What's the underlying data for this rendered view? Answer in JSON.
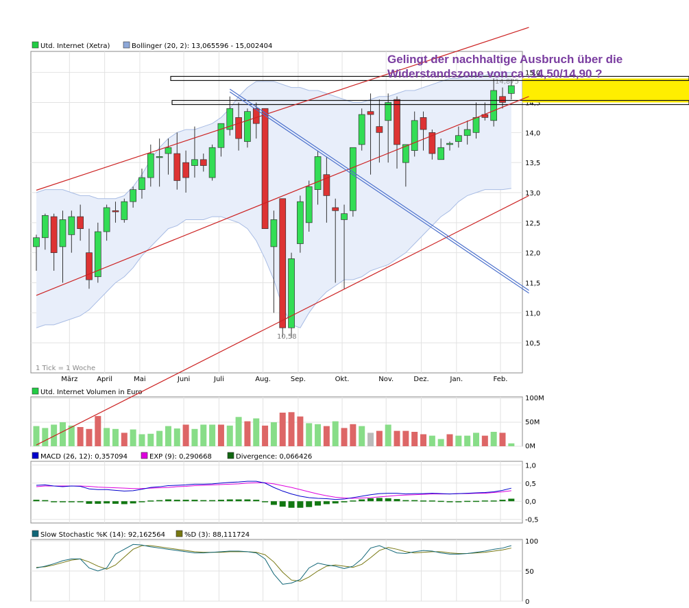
{
  "chart_data": [
    {
      "type": "candlestick",
      "legend": [
        {
          "label": "Utd. Internet (Xetra)",
          "color": "#22cc44"
        },
        {
          "label": "Bollinger (20, 2): 13,065596 - 15,002404",
          "color": "#8ea8d8"
        }
      ],
      "annotation": [
        "Gelingt der nachhaltige Ausbruch über die",
        "Widerstandszone von ca .14,50/14,90 ?"
      ],
      "tick_note": "1 Tick = 1 Woche",
      "low_label": "10,58",
      "high_label": "14,875",
      "yticks": [
        10.5,
        11.0,
        11.5,
        12.0,
        12.5,
        13.0,
        13.5,
        14.0,
        14.5,
        15.0
      ],
      "ytick_labels": [
        "10,5",
        "11,0",
        "11,5",
        "12,0",
        "12,5",
        "13,0",
        "13,5",
        "14,0",
        "14,5",
        "15,0"
      ],
      "ylim": [
        10.0,
        15.35
      ],
      "month_labels": [
        {
          "label": "März",
          "week": 4
        },
        {
          "label": "April",
          "week": 8
        },
        {
          "label": "Mai",
          "week": 12
        },
        {
          "label": "Juni",
          "week": 17
        },
        {
          "label": "Juli",
          "week": 21
        },
        {
          "label": "Aug.",
          "week": 26
        },
        {
          "label": "Sep.",
          "week": 30
        },
        {
          "label": "Okt.",
          "week": 35
        },
        {
          "label": "Nov.",
          "week": 40
        },
        {
          "label": "Dez.",
          "week": 44
        },
        {
          "label": "Jan.",
          "week": 48
        },
        {
          "label": "Feb.",
          "week": 53
        }
      ],
      "ohlc": [
        [
          12.1,
          12.3,
          11.7,
          12.25
        ],
        [
          12.25,
          12.65,
          12.05,
          12.62
        ],
        [
          12.6,
          12.65,
          11.7,
          12.0
        ],
        [
          12.1,
          12.7,
          11.5,
          12.55
        ],
        [
          12.3,
          12.7,
          12.0,
          12.6
        ],
        [
          12.6,
          12.8,
          12.2,
          12.4
        ],
        [
          12.0,
          12.4,
          11.4,
          11.55
        ],
        [
          11.6,
          12.5,
          11.5,
          12.35
        ],
        [
          12.35,
          12.8,
          12.2,
          12.75
        ],
        [
          12.7,
          12.85,
          12.5,
          12.68
        ],
        [
          12.55,
          12.9,
          12.5,
          12.85
        ],
        [
          12.85,
          13.1,
          12.75,
          13.05
        ],
        [
          13.05,
          13.4,
          12.9,
          13.25
        ],
        [
          13.25,
          13.8,
          13.1,
          13.65
        ],
        [
          13.6,
          13.9,
          13.1,
          13.6
        ],
        [
          13.65,
          13.9,
          13.3,
          13.75
        ],
        [
          13.65,
          14.0,
          13.05,
          13.2
        ],
        [
          13.5,
          13.7,
          13.0,
          13.25
        ],
        [
          13.45,
          14.1,
          13.25,
          13.55
        ],
        [
          13.55,
          13.65,
          13.35,
          13.45
        ],
        [
          13.25,
          13.8,
          13.2,
          13.75
        ],
        [
          13.75,
          14.1,
          13.6,
          14.15
        ],
        [
          14.05,
          14.6,
          13.95,
          14.4
        ],
        [
          14.25,
          14.5,
          13.7,
          13.9
        ],
        [
          13.85,
          14.4,
          13.75,
          14.35
        ],
        [
          14.4,
          14.5,
          13.9,
          14.15
        ],
        [
          14.4,
          14.4,
          12.4,
          12.4
        ],
        [
          12.1,
          12.7,
          11.0,
          12.55
        ],
        [
          12.9,
          12.9,
          10.6,
          10.75
        ],
        [
          10.75,
          12.0,
          10.58,
          11.9
        ],
        [
          12.15,
          12.95,
          12.0,
          12.85
        ],
        [
          12.5,
          13.2,
          12.35,
          13.1
        ],
        [
          13.05,
          13.7,
          12.8,
          13.6
        ],
        [
          13.3,
          13.6,
          12.5,
          12.95
        ],
        [
          12.75,
          12.9,
          11.5,
          12.7
        ],
        [
          12.55,
          12.8,
          11.4,
          12.65
        ],
        [
          12.7,
          13.7,
          12.6,
          13.75
        ],
        [
          13.8,
          14.4,
          13.7,
          14.3
        ],
        [
          14.35,
          14.65,
          13.3,
          14.3
        ],
        [
          14.1,
          14.55,
          13.5,
          14.0
        ],
        [
          14.2,
          14.65,
          13.5,
          14.5
        ],
        [
          14.55,
          14.6,
          13.4,
          13.8
        ],
        [
          13.5,
          13.8,
          13.1,
          13.8
        ],
        [
          13.7,
          14.35,
          13.6,
          14.2
        ],
        [
          14.25,
          14.35,
          13.7,
          14.05
        ],
        [
          14.0,
          14.05,
          13.55,
          13.65
        ],
        [
          13.55,
          13.9,
          13.55,
          13.75
        ],
        [
          13.8,
          13.85,
          13.7,
          13.82
        ],
        [
          13.85,
          14.1,
          13.75,
          13.95
        ],
        [
          13.95,
          14.2,
          13.8,
          14.05
        ],
        [
          14.0,
          14.5,
          13.9,
          14.25
        ],
        [
          14.3,
          14.5,
          14.2,
          14.25
        ],
        [
          14.2,
          14.9,
          14.1,
          14.7
        ],
        [
          14.6,
          14.75,
          14.4,
          14.5
        ],
        [
          14.65,
          14.88,
          14.55,
          14.78
        ]
      ],
      "bollinger_upper": [
        13.0,
        13.05,
        13.05,
        13.05,
        13.0,
        12.95,
        12.95,
        12.9,
        12.9,
        12.9,
        12.95,
        13.1,
        13.3,
        13.55,
        13.75,
        13.9,
        14.0,
        14.05,
        14.05,
        14.1,
        14.15,
        14.25,
        14.4,
        14.6,
        14.75,
        14.85,
        14.85,
        14.85,
        14.8,
        14.75,
        14.75,
        14.7,
        14.7,
        14.65,
        14.6,
        14.55,
        14.5,
        14.5,
        14.55,
        14.6,
        14.6,
        14.65,
        14.7,
        14.7,
        14.75,
        14.8,
        14.85,
        14.9,
        14.9,
        14.95,
        14.95,
        14.95,
        15.0,
        15.0,
        15.0
      ],
      "bollinger_lower": [
        10.75,
        10.8,
        10.8,
        10.85,
        10.9,
        10.95,
        11.05,
        11.2,
        11.35,
        11.5,
        11.6,
        11.75,
        11.95,
        12.1,
        12.25,
        12.4,
        12.45,
        12.55,
        12.55,
        12.55,
        12.6,
        12.6,
        12.55,
        12.5,
        12.4,
        12.2,
        11.9,
        11.55,
        11.1,
        10.8,
        10.75,
        11.0,
        11.2,
        11.35,
        11.45,
        11.55,
        11.55,
        11.6,
        11.7,
        11.75,
        11.8,
        11.9,
        12.0,
        12.15,
        12.3,
        12.45,
        12.6,
        12.7,
        12.85,
        12.95,
        13.0,
        13.05,
        13.05,
        13.05,
        13.07
      ],
      "trendlines": [
        {
          "name": "red-channel-mid",
          "color": "#cc2222",
          "from": [
            0,
            11.29
          ],
          "to": [
            56,
            14.6
          ]
        },
        {
          "name": "red-channel-upper",
          "color": "#cc2222",
          "from": [
            0,
            13.04
          ],
          "to": [
            56,
            15.75
          ]
        },
        {
          "name": "red-channel-lower",
          "color": "#cc2222",
          "from": [
            0,
            8.8
          ],
          "to": [
            56,
            12.95
          ]
        },
        {
          "name": "blue-downtrend",
          "color": "#4a6fcc",
          "from": [
            22,
            14.7
          ],
          "to": [
            56,
            11.35
          ]
        }
      ],
      "resistance_zone": {
        "low": 14.5,
        "high": 14.9,
        "color": "#ffee00"
      }
    },
    {
      "type": "bar",
      "legend": [
        {
          "label": "Utd. Internet Volumen in Euro",
          "color": "#22cc44"
        }
      ],
      "yticks_labels": [
        "100M",
        "50M",
        "0M"
      ],
      "ylim": [
        0,
        100
      ],
      "values": [
        42,
        38,
        45,
        50,
        43,
        40,
        36,
        63,
        38,
        36,
        28,
        35,
        25,
        26,
        32,
        42,
        37,
        45,
        36,
        45,
        45,
        45,
        43,
        61,
        52,
        58,
        43,
        50,
        70,
        71,
        62,
        48,
        46,
        42,
        52,
        38,
        46,
        42,
        28,
        32,
        45,
        32,
        32,
        30,
        25,
        22,
        15,
        25,
        22,
        22,
        28,
        22,
        30,
        28,
        6
      ],
      "colors": [
        "g",
        "g",
        "g",
        "g",
        "g",
        "r",
        "r",
        "r",
        "g",
        "g",
        "r",
        "g",
        "g",
        "g",
        "g",
        "g",
        "g",
        "r",
        "g",
        "g",
        "g",
        "r",
        "g",
        "g",
        "r",
        "g",
        "r",
        "g",
        "r",
        "r",
        "r",
        "g",
        "g",
        "r",
        "g",
        "r",
        "r",
        "g",
        "s",
        "r",
        "g",
        "r",
        "r",
        "r",
        "r",
        "g",
        "g",
        "r",
        "g",
        "g",
        "g",
        "r",
        "g",
        "r",
        "g"
      ]
    },
    {
      "type": "line",
      "legend": [
        {
          "label": "MACD (26, 12): 0,357094",
          "color": "#0000cc"
        },
        {
          "label": "EXP (9): 0,290668",
          "color": "#dd00dd"
        },
        {
          "label": "Divergence: 0,066426",
          "color": "#116611"
        }
      ],
      "yticks": [
        1.0,
        0.5,
        0.0,
        -0.5
      ],
      "ytick_labels": [
        "1,0",
        "0,5",
        "0,0",
        "-0,5"
      ],
      "ylim": [
        -0.6,
        1.1
      ],
      "macd": [
        0.44,
        0.45,
        0.42,
        0.4,
        0.42,
        0.41,
        0.34,
        0.32,
        0.32,
        0.3,
        0.28,
        0.29,
        0.33,
        0.38,
        0.4,
        0.43,
        0.44,
        0.45,
        0.47,
        0.47,
        0.48,
        0.5,
        0.52,
        0.53,
        0.55,
        0.55,
        0.5,
        0.38,
        0.28,
        0.2,
        0.14,
        0.1,
        0.08,
        0.07,
        0.05,
        0.06,
        0.1,
        0.14,
        0.18,
        0.21,
        0.22,
        0.22,
        0.2,
        0.21,
        0.21,
        0.22,
        0.21,
        0.2,
        0.21,
        0.22,
        0.23,
        0.24,
        0.26,
        0.3,
        0.36
      ],
      "exp": [
        0.4,
        0.42,
        0.42,
        0.42,
        0.42,
        0.42,
        0.41,
        0.39,
        0.38,
        0.37,
        0.36,
        0.35,
        0.35,
        0.36,
        0.37,
        0.38,
        0.4,
        0.41,
        0.43,
        0.44,
        0.45,
        0.46,
        0.47,
        0.48,
        0.5,
        0.51,
        0.51,
        0.48,
        0.43,
        0.38,
        0.32,
        0.26,
        0.2,
        0.15,
        0.11,
        0.09,
        0.08,
        0.09,
        0.1,
        0.12,
        0.14,
        0.16,
        0.17,
        0.18,
        0.19,
        0.2,
        0.2,
        0.2,
        0.21,
        0.21,
        0.22,
        0.22,
        0.24,
        0.26,
        0.29
      ],
      "divergence": [
        0.04,
        0.03,
        0.0,
        -0.02,
        0.0,
        -0.01,
        -0.07,
        -0.07,
        -0.06,
        -0.07,
        -0.08,
        -0.06,
        -0.02,
        0.02,
        0.03,
        0.05,
        0.04,
        0.04,
        0.04,
        0.03,
        0.03,
        0.04,
        0.05,
        0.05,
        0.05,
        0.04,
        -0.01,
        -0.1,
        -0.15,
        -0.18,
        -0.18,
        -0.16,
        -0.12,
        -0.08,
        -0.06,
        -0.03,
        0.02,
        0.05,
        0.08,
        0.09,
        0.08,
        0.06,
        0.03,
        0.03,
        0.02,
        0.02,
        0.01,
        0.0,
        0.0,
        0.01,
        0.01,
        0.02,
        0.02,
        0.04,
        0.07
      ]
    },
    {
      "type": "line",
      "legend": [
        {
          "label": "Slow Stochastic %K (14): 92,162564",
          "color": "#116677"
        },
        {
          "label": "%D (3): 88,111724",
          "color": "#777711"
        }
      ],
      "yticks": [
        100,
        50,
        0
      ],
      "ytick_labels": [
        "100",
        "50",
        "0"
      ],
      "ylim": [
        0,
        100
      ],
      "k": [
        55,
        58,
        62,
        67,
        70,
        70,
        55,
        50,
        55,
        78,
        86,
        94,
        93,
        90,
        88,
        86,
        84,
        82,
        80,
        80,
        81,
        82,
        83,
        83,
        82,
        80,
        70,
        45,
        28,
        30,
        36,
        55,
        63,
        60,
        58,
        54,
        58,
        70,
        88,
        92,
        86,
        80,
        79,
        82,
        84,
        83,
        80,
        78,
        78,
        79,
        81,
        83,
        86,
        88,
        92
      ],
      "d": [
        56,
        57,
        60,
        64,
        68,
        70,
        65,
        58,
        53,
        60,
        73,
        86,
        92,
        92,
        90,
        88,
        86,
        84,
        82,
        81,
        81,
        81,
        82,
        82,
        82,
        81,
        77,
        65,
        48,
        35,
        33,
        40,
        50,
        58,
        60,
        58,
        56,
        61,
        72,
        84,
        89,
        86,
        82,
        80,
        81,
        82,
        82,
        80,
        79,
        79,
        80,
        81,
        83,
        85,
        88
      ]
    }
  ]
}
